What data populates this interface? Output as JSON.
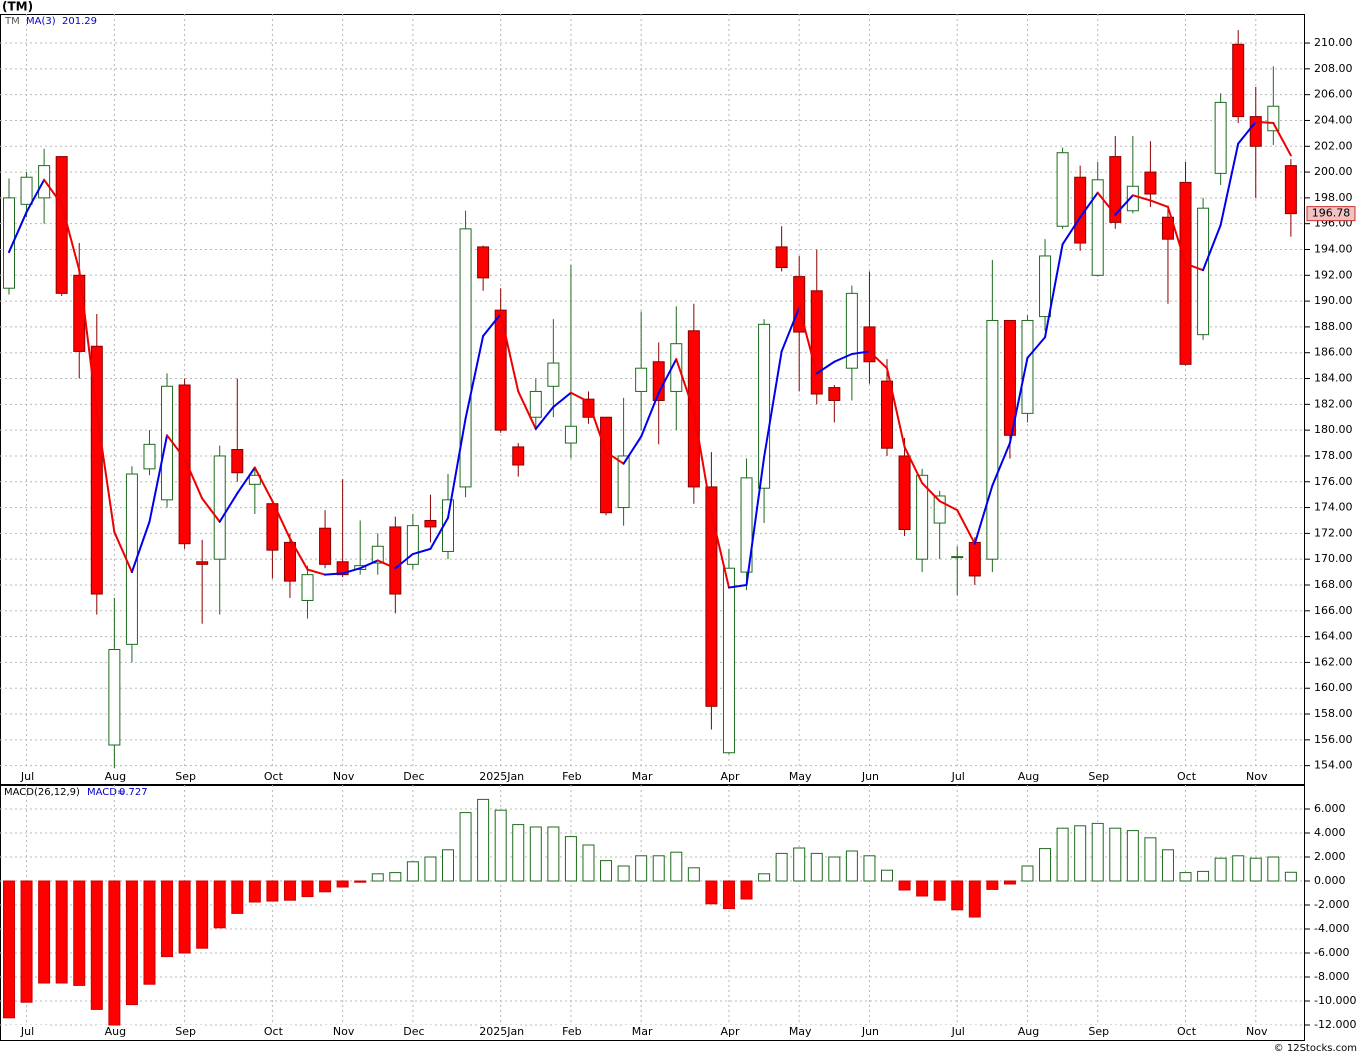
{
  "header": {
    "title": "(TM)"
  },
  "footer": {
    "credit": "© 12Stocks.com"
  },
  "chart_data": [
    {
      "type": "candlestick",
      "symbol": "TM",
      "categories": [
        null,
        "Jul",
        null,
        null,
        null,
        null,
        "Aug",
        null,
        null,
        null,
        "Sep",
        null,
        null,
        null,
        null,
        "Oct",
        null,
        null,
        null,
        "Nov",
        null,
        null,
        null,
        "Dec",
        null,
        null,
        null,
        null,
        "2025Jan",
        null,
        null,
        null,
        "Feb",
        null,
        null,
        null,
        "Mar",
        null,
        null,
        null,
        null,
        "Apr",
        null,
        null,
        null,
        "May",
        null,
        null,
        null,
        "Jun",
        null,
        null,
        null,
        null,
        "Jul",
        null,
        null,
        null,
        "Aug",
        null,
        null,
        null,
        "Sep",
        null,
        null,
        null,
        null,
        "Oct",
        null,
        null,
        null,
        "Nov",
        null,
        null
      ],
      "open": [
        191,
        197.5,
        198,
        201.2,
        192,
        186.5,
        155.6,
        163.4,
        177,
        174.6,
        183.5,
        169.8,
        170,
        178.5,
        175.8,
        174.3,
        171.3,
        166.8,
        172.4,
        169.8,
        169.2,
        169.7,
        172.5,
        169.6,
        173,
        170.6,
        175.6,
        194.2,
        189.3,
        178.7,
        181,
        183.4,
        179,
        182.4,
        181,
        174,
        183,
        185.3,
        183,
        187.7,
        175.6,
        155,
        169,
        175.5,
        194.2,
        191.9,
        190.8,
        183.3,
        184.8,
        188,
        183.8,
        178,
        170,
        172.8,
        170.2,
        171.3,
        170,
        188.5,
        181.3,
        188.8,
        195.8,
        199.6,
        192,
        201.2,
        197,
        200,
        196.5,
        199.2,
        187.4,
        199.9,
        209.9,
        204.3,
        203.2,
        200.5
      ],
      "high": [
        199.5,
        200,
        201.8,
        201.2,
        194.5,
        189,
        167,
        177.2,
        180,
        184.4,
        184,
        171.5,
        178.8,
        184,
        177,
        174.5,
        172,
        169.5,
        173.8,
        176.2,
        173,
        172,
        173.3,
        173.5,
        175,
        176.6,
        197,
        194.3,
        191,
        179,
        184,
        188.6,
        192.8,
        183,
        181,
        182.5,
        189.2,
        186.8,
        189.6,
        189.8,
        178.3,
        170.8,
        177.8,
        188.6,
        195.8,
        193.5,
        194,
        183.5,
        191.2,
        192.3,
        185.5,
        179.4,
        177,
        175.3,
        171,
        171.7,
        193.2,
        188.5,
        188.9,
        194.8,
        201.9,
        200.5,
        200.8,
        202.8,
        202.8,
        202.4,
        197.4,
        200.8,
        198,
        206.1,
        211,
        206.6,
        208.2,
        201
      ],
      "low": [
        190.5,
        196.5,
        196,
        190.4,
        184,
        165.7,
        153.8,
        162,
        176.5,
        174,
        170.8,
        165,
        165.7,
        176,
        173.5,
        168.5,
        167,
        165.4,
        169.3,
        168.6,
        168.8,
        168.8,
        165.8,
        169.2,
        171.3,
        170,
        174.8,
        190.8,
        179.8,
        176.4,
        180,
        181,
        177.8,
        180.5,
        173.4,
        172.6,
        180,
        178.9,
        180,
        174.3,
        156.8,
        154.9,
        167.6,
        172.8,
        192.3,
        183,
        182,
        180.6,
        182.3,
        183.6,
        178,
        171.8,
        169,
        170,
        167.2,
        168,
        169,
        177.8,
        180.6,
        187.7,
        195.6,
        193.9,
        191.9,
        195.6,
        196.8,
        197.3,
        189.8,
        185,
        187,
        199,
        203.8,
        198,
        202.1,
        195
      ],
      "close": [
        198,
        199.6,
        200.5,
        190.6,
        186.1,
        167.3,
        163,
        176.6,
        178.9,
        183.4,
        171.2,
        169.6,
        178,
        176.7,
        176.5,
        170.7,
        168.3,
        168.8,
        169.6,
        168.8,
        169.5,
        171,
        167.3,
        172.6,
        172.5,
        174.6,
        195.6,
        191.8,
        180,
        177.3,
        183,
        185.2,
        180.3,
        181,
        173.6,
        178,
        184.8,
        182.3,
        186.7,
        175.6,
        158.6,
        169.3,
        176.3,
        188.2,
        192.6,
        187.6,
        182.8,
        182.3,
        190.6,
        185.3,
        178.6,
        172.3,
        176.5,
        174.9,
        170.2,
        168.7,
        188.5,
        179.6,
        188.5,
        193.5,
        201.5,
        194.5,
        199.4,
        196.1,
        198.9,
        198.3,
        194.8,
        185.1,
        197.2,
        205.4,
        204.3,
        202,
        205.1,
        196.78
      ],
      "up_color": "#1f6b1f",
      "down_color": "#ff0000",
      "overlay": {
        "name": "MA(3)",
        "values": [
          193.8,
          196.9,
          199.4,
          197.5,
          192.4,
          181.4,
          172.1,
          169,
          172.9,
          179.6,
          177.8,
          174.7,
          172.9,
          175.1,
          177.1,
          174.5,
          171.6,
          169.2,
          168.8,
          168.9,
          169.3,
          169.9,
          169.3,
          170.4,
          170.8,
          173.2,
          180.9,
          187.3,
          189,
          183,
          180.1,
          181.8,
          182.9,
          182.2,
          178.3,
          177.4,
          179.5,
          182.9,
          185.5,
          181.5,
          173.6,
          167.8,
          168,
          177.9,
          186.1,
          189.5,
          184.4,
          185.3,
          185.9,
          186.1,
          184.8,
          178.7,
          175.9,
          174.5,
          173.8,
          171.2,
          175.7,
          179,
          185.6,
          187.2,
          194.4,
          196.5,
          198.4,
          196.7,
          198.2,
          197.8,
          197.3,
          192.9,
          192.4,
          195.9,
          202.2,
          203.9,
          203.8,
          201.29
        ],
        "rising_color": "#0000ee",
        "falling_color": "#ee0000"
      },
      "ylim": [
        152.5,
        212.25
      ],
      "yticks": [
        {
          "value": 154,
          "label": "154.00"
        },
        {
          "value": 156,
          "label": "156.00"
        },
        {
          "value": 158,
          "label": "158.00"
        },
        {
          "value": 160,
          "label": "160.00"
        },
        {
          "value": 162,
          "label": "162.00"
        },
        {
          "value": 164,
          "label": "164.00"
        },
        {
          "value": 166,
          "label": "166.00"
        },
        {
          "value": 168,
          "label": "168.00"
        },
        {
          "value": 170,
          "label": "170.00"
        },
        {
          "value": 172,
          "label": "172.00"
        },
        {
          "value": 174,
          "label": "174.00"
        },
        {
          "value": 176,
          "label": "176.00"
        },
        {
          "value": 178,
          "label": "178.00"
        },
        {
          "value": 180,
          "label": "180.00"
        },
        {
          "value": 182,
          "label": "182.00"
        },
        {
          "value": 184,
          "label": "184.00"
        },
        {
          "value": 186,
          "label": "186.00"
        },
        {
          "value": 188,
          "label": "188.00"
        },
        {
          "value": 190,
          "label": "190.00"
        },
        {
          "value": 192,
          "label": "192.00"
        },
        {
          "value": 194,
          "label": "194.00"
        },
        {
          "value": 196,
          "label": "196.00"
        },
        {
          "value": 198,
          "label": "198.00"
        },
        {
          "value": 200,
          "label": "200.00"
        },
        {
          "value": 202,
          "label": "202.00"
        },
        {
          "value": 204,
          "label": "204.00"
        },
        {
          "value": 206,
          "label": "206.00"
        },
        {
          "value": 208,
          "label": "208.00"
        },
        {
          "value": 210,
          "label": "210.00"
        }
      ],
      "grid": true
    },
    {
      "type": "bar",
      "name": "MACD(26,12,9)",
      "value_prefix": "MACD=",
      "values": [
        -11.4,
        -10.1,
        -8.5,
        -8.5,
        -8.7,
        -10.7,
        -12,
        -10.3,
        -8.6,
        -6.3,
        -6,
        -5.6,
        -3.9,
        -2.7,
        -1.75,
        -1.67,
        -1.6,
        -1.3,
        -0.9,
        -0.5,
        -0.1,
        0.6,
        0.7,
        1.6,
        2,
        2.6,
        5.7,
        6.8,
        5.9,
        4.7,
        4.5,
        4.5,
        3.7,
        3,
        1.7,
        1.25,
        2.1,
        2.1,
        2.4,
        1.1,
        -1.9,
        -2.3,
        -1.5,
        0.6,
        2.3,
        2.75,
        2.3,
        2,
        2.5,
        2.1,
        0.9,
        -0.75,
        -1.25,
        -1.6,
        -2.4,
        -3,
        -0.7,
        -0.25,
        1.25,
        2.7,
        4.4,
        4.6,
        4.8,
        4.4,
        4.2,
        3.6,
        2.6,
        0.7,
        0.8,
        1.9,
        2.1,
        1.9,
        2,
        0.727
      ],
      "positive_color": "#1f6b1f",
      "negative_color": "#ff0000",
      "ylim": [
        -13.25,
        8
      ],
      "yticks": [
        {
          "value": 6,
          "label": "6.000"
        },
        {
          "value": 4,
          "label": "4.000"
        },
        {
          "value": 2,
          "label": "2.000"
        },
        {
          "value": 0,
          "label": "0.000"
        },
        {
          "value": -2,
          "label": "-2.000"
        },
        {
          "value": -4,
          "label": "-4.000"
        },
        {
          "value": -6,
          "label": "-6.000"
        },
        {
          "value": -8,
          "label": "-8.000"
        },
        {
          "value": -10,
          "label": "-10.000"
        },
        {
          "value": -12,
          "label": "-12.000"
        }
      ],
      "grid": true
    }
  ]
}
